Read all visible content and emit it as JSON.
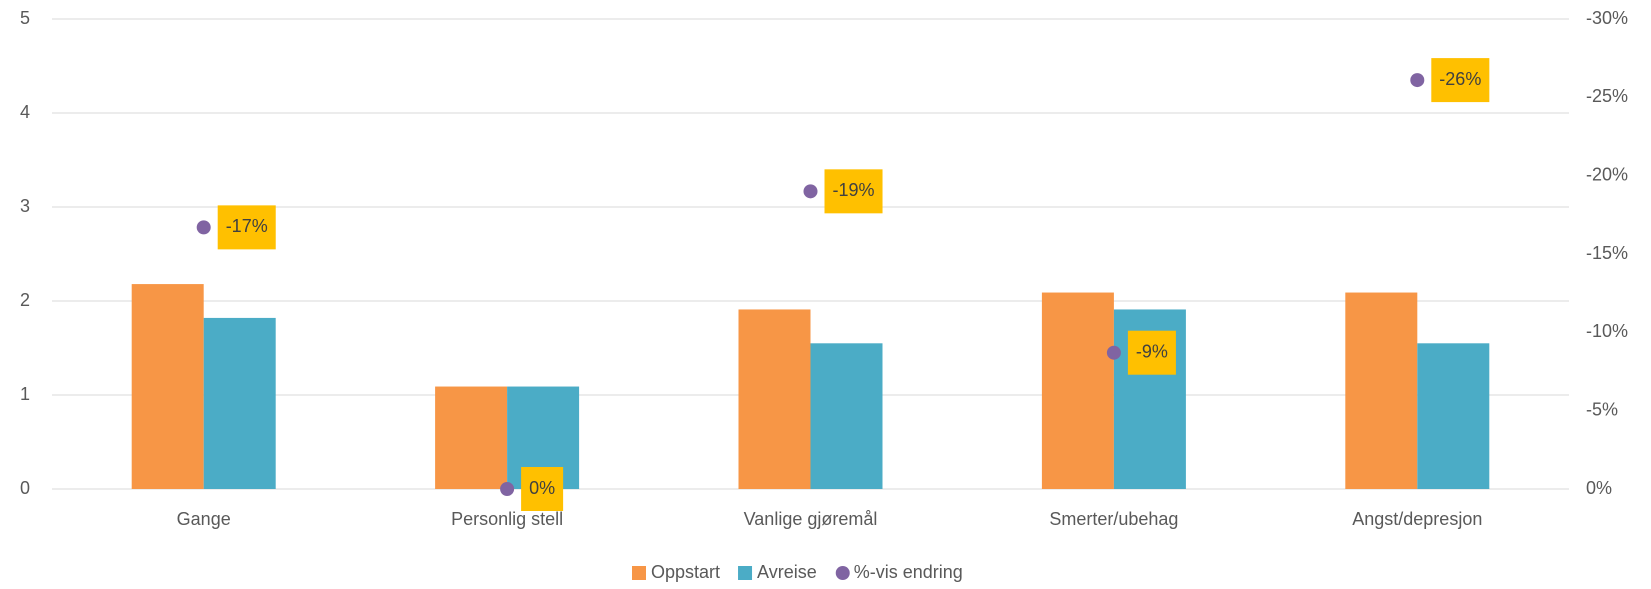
{
  "chart_data": {
    "type": "bar",
    "categories": [
      "Gange",
      "Personlig stell",
      "Vanlige gjøremål",
      "Smerter/ubehag",
      "Angst/depresjon"
    ],
    "series": [
      {
        "name": "Oppstart",
        "color": "#f79646",
        "values": [
          2.18,
          1.09,
          1.91,
          2.09,
          2.09
        ]
      },
      {
        "name": "Avreise",
        "color": "#4bacc6",
        "values": [
          1.82,
          1.09,
          1.55,
          1.91,
          1.55
        ]
      },
      {
        "name": "%-vis endring",
        "color": "#8064a2",
        "type": "scatter",
        "axis": "y2",
        "values": [
          -16.7,
          0,
          -19,
          -8.7,
          -26.1
        ],
        "value_labels": [
          "-17%",
          "0%",
          "-19%",
          "-9%",
          "-26%"
        ],
        "label_color": "#ffc000"
      }
    ],
    "ylim": [
      0,
      5
    ],
    "yticks": [
      0,
      1,
      2,
      3,
      4,
      5
    ],
    "y2lim": [
      0,
      -30
    ],
    "y2ticks": [
      {
        "value": 0,
        "label": "0%"
      },
      {
        "value": -5,
        "label": "-5%"
      },
      {
        "value": -10,
        "label": "-10%"
      },
      {
        "value": -15,
        "label": "-15%"
      },
      {
        "value": -20,
        "label": "-20%"
      },
      {
        "value": -25,
        "label": "-25%"
      },
      {
        "value": -30,
        "label": "-30%"
      }
    ],
    "grid": true,
    "legend": "bottom"
  }
}
